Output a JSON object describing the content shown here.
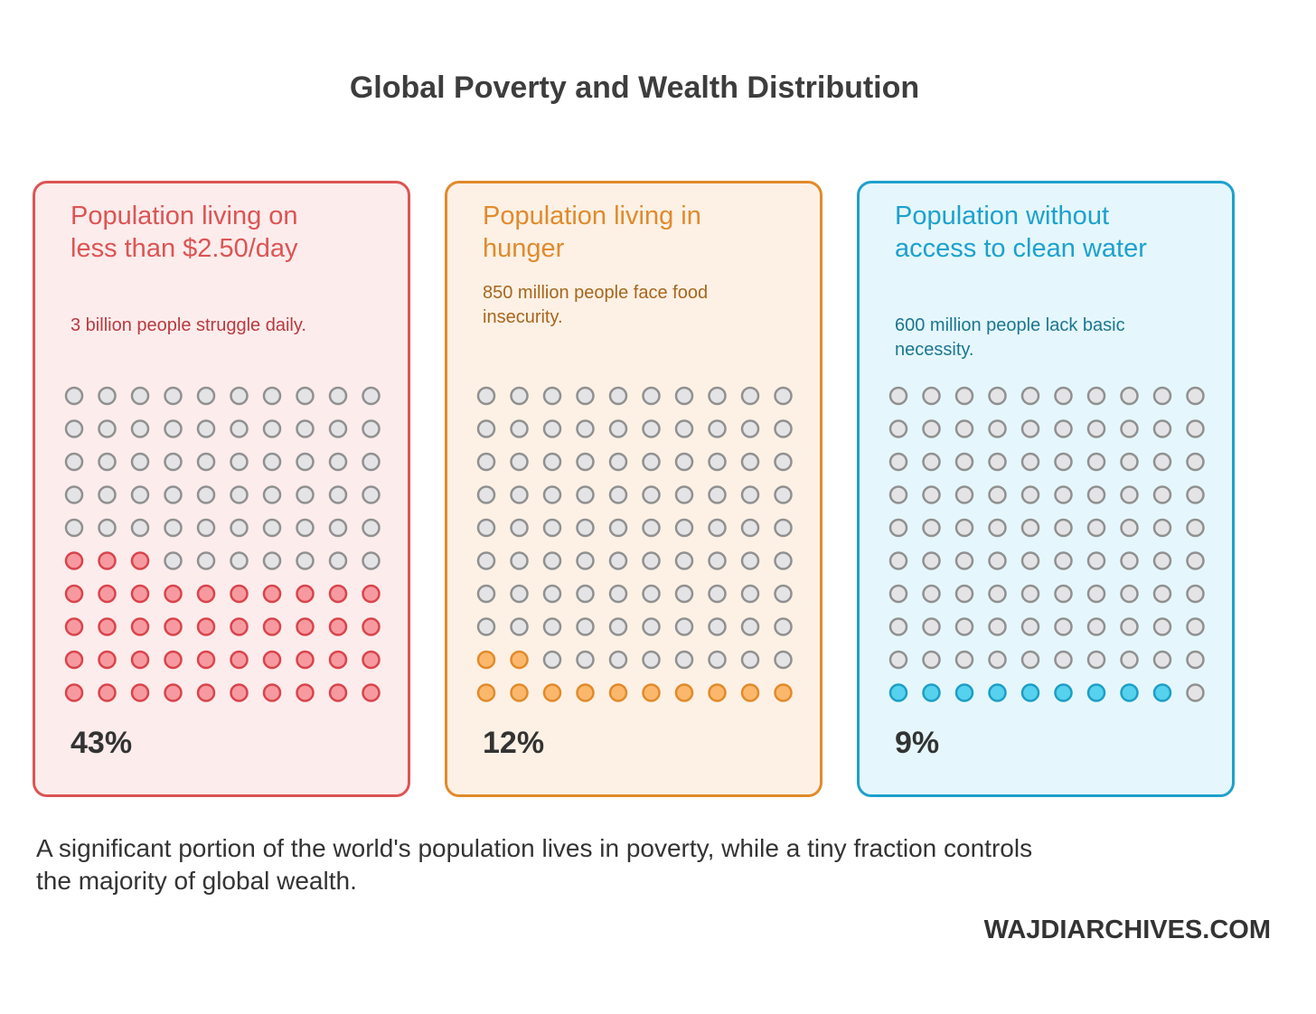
{
  "title": "Global Poverty and Wealth Distribution",
  "chart_data": {
    "type": "waffle",
    "grid": {
      "rows": 10,
      "cols": 10
    },
    "empty_color": "#e4e4e6",
    "empty_stroke": "#909090",
    "panels": [
      {
        "heading": "Population living on less than $2.50/day",
        "description": "3 billion people struggle daily.",
        "percent": 43,
        "percent_label": "43%",
        "fill": "#f79aa0",
        "stroke": "#d9444b",
        "bg": "#fdecec",
        "border": "#dc5454",
        "heading_color": "#dc5454",
        "desc_color": "#b83a40"
      },
      {
        "heading": "Population living in hunger",
        "description": "850 million people face food insecurity.",
        "percent": 12,
        "percent_label": "12%",
        "fill": "#fbb86c",
        "stroke": "#e28a2a",
        "bg": "#fdf1e5",
        "border": "#e28a2a",
        "heading_color": "#e08a2c",
        "desc_color": "#a6661e"
      },
      {
        "heading": "Population without access to clean water",
        "description": "600 million people lack basic necessity.",
        "percent": 9,
        "percent_label": "9%",
        "fill": "#56d2ee",
        "stroke": "#1d9ec6",
        "bg": "#e5f7fc",
        "border": "#1ea0cc",
        "heading_color": "#1ca1cf",
        "desc_color": "#1b7691"
      }
    ]
  },
  "caption": "A significant portion of the world's population lives in poverty, while a tiny fraction controls the majority of global wealth.",
  "brand": "WAJDIARCHIVES.COM"
}
